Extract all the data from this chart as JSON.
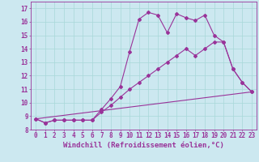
{
  "xlabel": "Windchill (Refroidissement éolien,°C)",
  "bg_color": "#cce8f0",
  "line_color": "#993399",
  "x_ticks": [
    0,
    1,
    2,
    3,
    4,
    5,
    6,
    7,
    8,
    9,
    10,
    11,
    12,
    13,
    14,
    15,
    16,
    17,
    18,
    19,
    20,
    21,
    22,
    23
  ],
  "ylim": [
    8,
    17.5
  ],
  "xlim": [
    -0.5,
    23.5
  ],
  "series1_x": [
    0,
    1,
    2,
    3,
    4,
    5,
    6,
    7,
    8,
    9,
    10,
    11,
    12,
    13,
    14,
    15,
    16,
    17,
    18,
    19,
    20,
    21,
    22,
    23
  ],
  "series1_y": [
    8.8,
    8.5,
    8.7,
    8.7,
    8.7,
    8.7,
    8.7,
    9.5,
    10.3,
    11.2,
    13.8,
    16.2,
    16.7,
    16.5,
    15.2,
    16.6,
    16.3,
    16.1,
    16.5,
    15.0,
    14.5,
    12.5,
    11.5,
    10.8
  ],
  "series2_x": [
    0,
    1,
    2,
    3,
    4,
    5,
    6,
    7,
    8,
    9,
    10,
    11,
    12,
    13,
    14,
    15,
    16,
    17,
    18,
    19,
    20,
    21,
    22,
    23
  ],
  "series2_y": [
    8.8,
    8.5,
    8.7,
    8.7,
    8.7,
    8.7,
    8.7,
    9.3,
    9.8,
    10.4,
    11.0,
    11.5,
    12.0,
    12.5,
    13.0,
    13.5,
    14.0,
    13.5,
    14.0,
    14.5,
    14.5,
    12.5,
    11.5,
    10.8
  ],
  "series3_x": [
    0,
    23
  ],
  "series3_y": [
    8.8,
    10.8
  ],
  "grid_color": "#a8d8d8",
  "tick_fontsize": 5.5,
  "label_fontsize": 6.5
}
